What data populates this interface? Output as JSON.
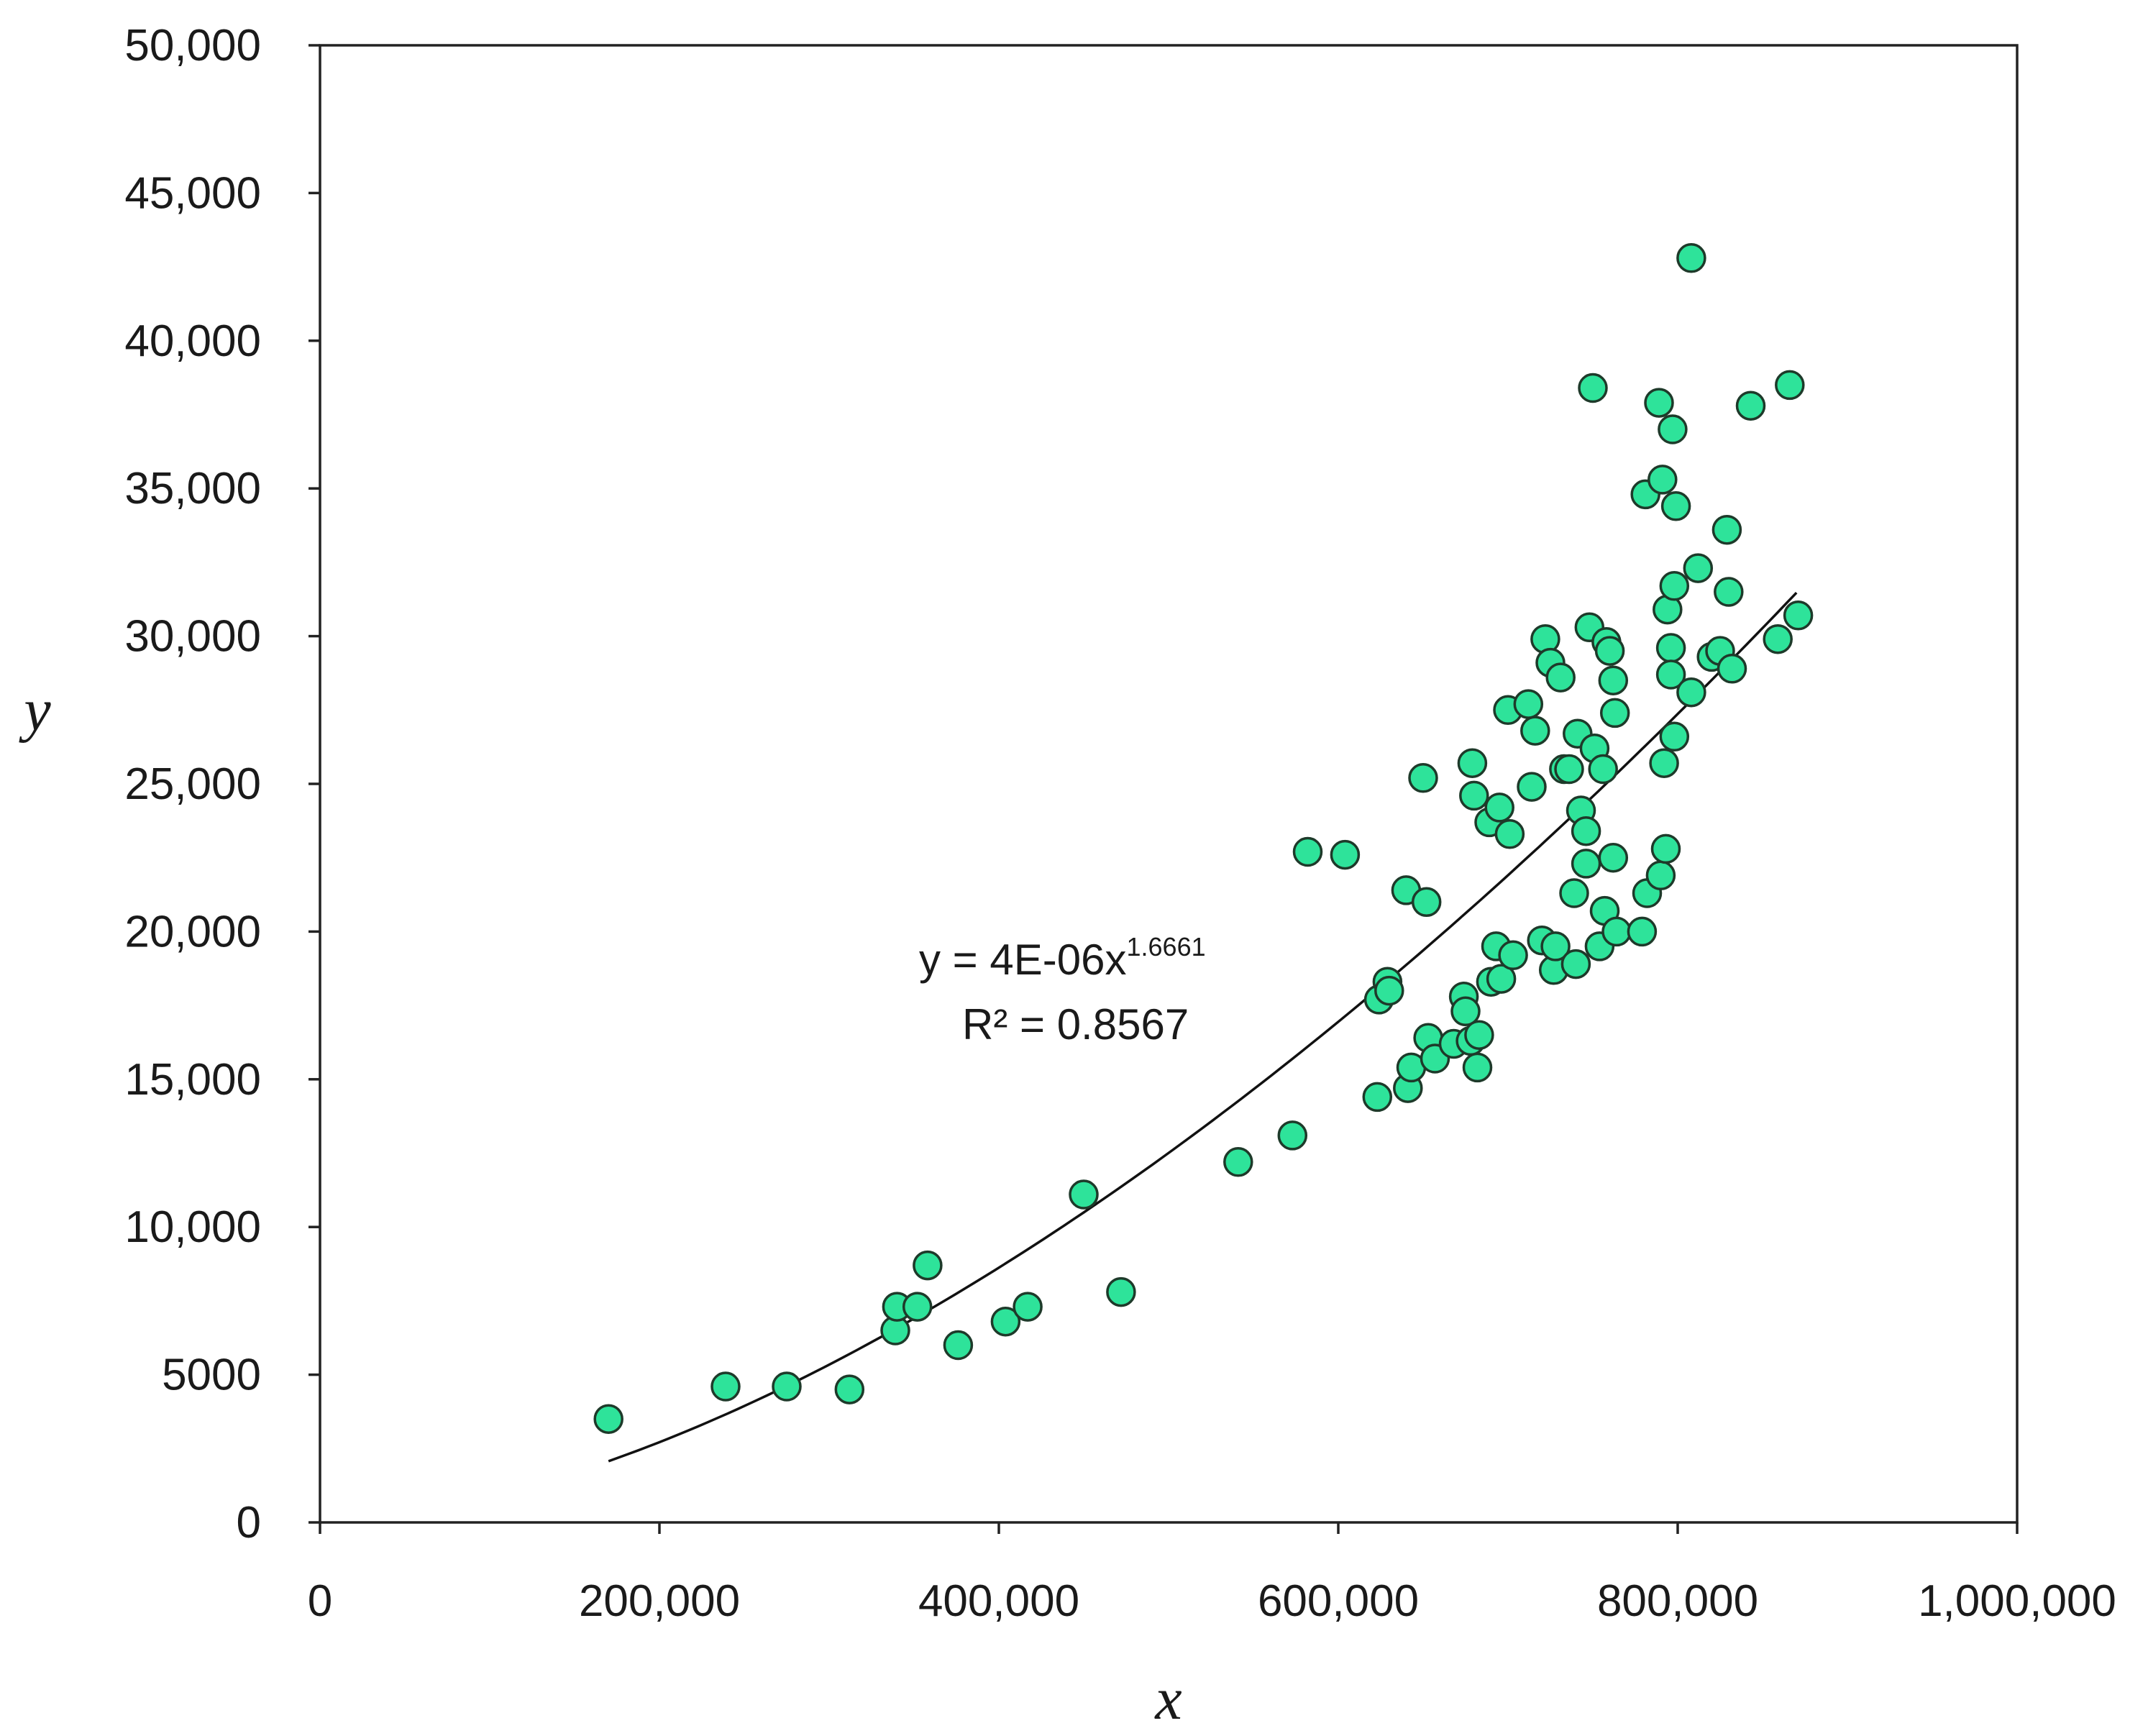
{
  "chart_data": {
    "type": "scatter",
    "title": "",
    "xlabel": "x",
    "ylabel": "y",
    "xlim": [
      0,
      1000000
    ],
    "ylim": [
      0,
      50000
    ],
    "x_ticks": [
      0,
      200000,
      400000,
      600000,
      800000,
      1000000
    ],
    "x_tick_labels": [
      "0",
      "200,000",
      "400,000",
      "600,000",
      "800,000",
      "1,000,000"
    ],
    "y_ticks": [
      0,
      5000,
      10000,
      15000,
      20000,
      25000,
      30000,
      35000,
      40000,
      45000,
      50000
    ],
    "y_tick_labels": [
      "0",
      "5000",
      "10,000",
      "15,000",
      "20,000",
      "25,000",
      "30,000",
      "35,000",
      "40,000",
      "45,000",
      "50,000"
    ],
    "grid": false,
    "marker_color": "#2ee39a",
    "marker_edge_color": "#1e3a2a",
    "trendline": {
      "type": "power",
      "coefficient": 4e-06,
      "exponent": 1.6661,
      "x_range": [
        170000,
        870000
      ],
      "equation_text": "y = 4E-06x",
      "equation_exponent_text": "1.6661",
      "r2_text": "R² = 0.8567"
    },
    "points": [
      [
        170000,
        3500
      ],
      [
        239000,
        4600
      ],
      [
        275000,
        4600
      ],
      [
        312000,
        4500
      ],
      [
        339000,
        6500
      ],
      [
        340000,
        7300
      ],
      [
        352000,
        7300
      ],
      [
        358000,
        8700
      ],
      [
        376000,
        6000
      ],
      [
        404000,
        6800
      ],
      [
        417000,
        7300
      ],
      [
        450000,
        11100
      ],
      [
        472000,
        7800
      ],
      [
        541000,
        12200
      ],
      [
        573000,
        13100
      ],
      [
        582000,
        22700
      ],
      [
        604000,
        22600
      ],
      [
        623000,
        14400
      ],
      [
        624000,
        17700
      ],
      [
        629000,
        18300
      ],
      [
        630000,
        18000
      ],
      [
        640000,
        21400
      ],
      [
        641000,
        14700
      ],
      [
        643000,
        15400
      ],
      [
        650000,
        25200
      ],
      [
        652000,
        21000
      ],
      [
        653000,
        16400
      ],
      [
        657000,
        15700
      ],
      [
        668000,
        16200
      ],
      [
        674000,
        17800
      ],
      [
        675000,
        17300
      ],
      [
        678000,
        16300
      ],
      [
        679000,
        25700
      ],
      [
        680000,
        24600
      ],
      [
        682000,
        15400
      ],
      [
        683000,
        16500
      ],
      [
        689000,
        23700
      ],
      [
        690000,
        18300
      ],
      [
        693000,
        19500
      ],
      [
        695000,
        24200
      ],
      [
        696000,
        18400
      ],
      [
        700000,
        27500
      ],
      [
        701000,
        23300
      ],
      [
        703000,
        19200
      ],
      [
        712000,
        27700
      ],
      [
        714000,
        24900
      ],
      [
        716000,
        26800
      ],
      [
        720000,
        19700
      ],
      [
        722000,
        29900
      ],
      [
        725000,
        29100
      ],
      [
        727000,
        18700
      ],
      [
        728000,
        19500
      ],
      [
        731000,
        28600
      ],
      [
        733000,
        25500
      ],
      [
        736000,
        25500
      ],
      [
        739000,
        21300
      ],
      [
        740000,
        18900
      ],
      [
        741000,
        26700
      ],
      [
        743000,
        24100
      ],
      [
        746000,
        23400
      ],
      [
        746000,
        22300
      ],
      [
        748000,
        30300
      ],
      [
        750000,
        38400
      ],
      [
        751000,
        26200
      ],
      [
        754000,
        19500
      ],
      [
        756000,
        25500
      ],
      [
        757000,
        20700
      ],
      [
        758000,
        29800
      ],
      [
        760000,
        29500
      ],
      [
        762000,
        22500
      ],
      [
        762000,
        28500
      ],
      [
        763000,
        27400
      ],
      [
        764000,
        20000
      ],
      [
        779000,
        20000
      ],
      [
        781000,
        34800
      ],
      [
        782000,
        21300
      ],
      [
        789000,
        37900
      ],
      [
        790000,
        21900
      ],
      [
        791000,
        35300
      ],
      [
        792000,
        25700
      ],
      [
        793000,
        22800
      ],
      [
        794000,
        30900
      ],
      [
        796000,
        29600
      ],
      [
        796000,
        28700
      ],
      [
        797000,
        37000
      ],
      [
        798000,
        26600
      ],
      [
        798000,
        31700
      ],
      [
        799000,
        34400
      ],
      [
        808000,
        42800
      ],
      [
        808000,
        28100
      ],
      [
        812000,
        32300
      ],
      [
        820000,
        29300
      ],
      [
        825000,
        29500
      ],
      [
        829000,
        33600
      ],
      [
        830000,
        31500
      ],
      [
        832000,
        28900
      ],
      [
        843000,
        37800
      ],
      [
        859000,
        29900
      ],
      [
        866000,
        38500
      ],
      [
        871000,
        30700
      ]
    ]
  }
}
